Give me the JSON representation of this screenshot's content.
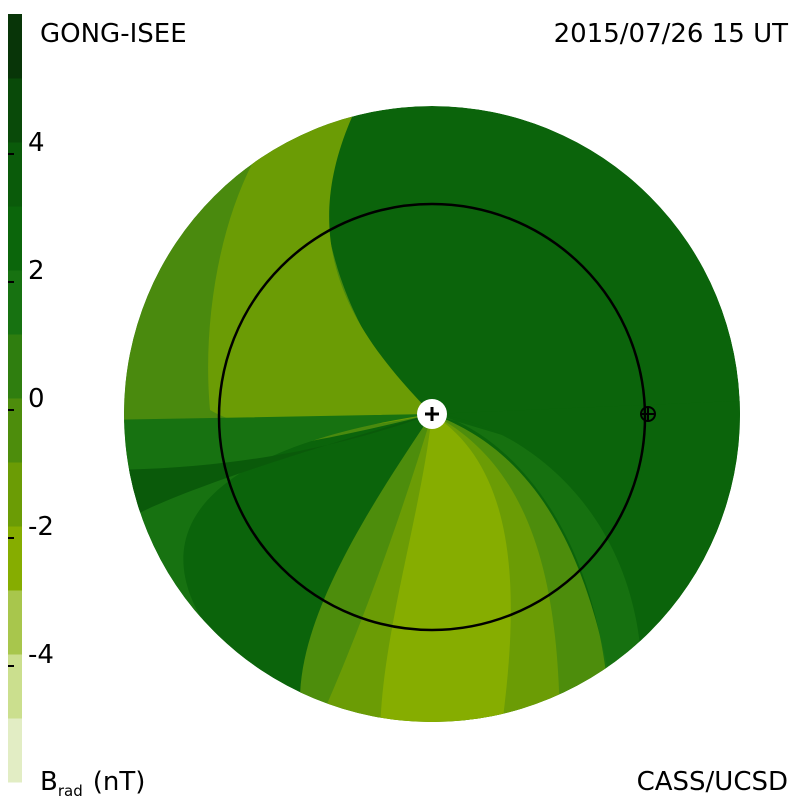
{
  "chart_data": {
    "type": "contour",
    "title_left": "GONG-ISEE",
    "title_right": "2015/07/26 15 UT",
    "footer_right": "CASS/UCSD",
    "colorbar_label": "B",
    "colorbar_label_sub": "rad",
    "colorbar_unit": "(nT)",
    "ylim": [
      -6,
      6
    ],
    "yticks": [
      -4,
      -2,
      0,
      2,
      4
    ],
    "colors": [
      "#e2edc4",
      "#cbdf8e",
      "#a8c64c",
      "#86ad00",
      "#6b9c05",
      "#4d8d0c",
      "#2f7e0f",
      "#177211",
      "#0b660b",
      "#0a5b0a",
      "#094a09",
      "#083508"
    ]
  }
}
